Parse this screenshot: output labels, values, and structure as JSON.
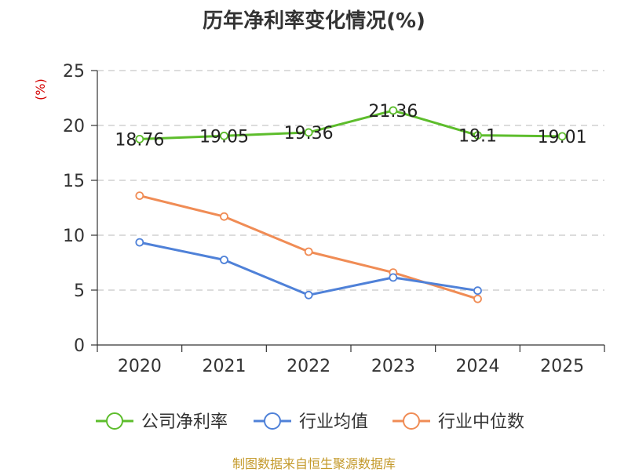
{
  "chart_data": {
    "type": "line",
    "title": "历年净利率变化情况(%)",
    "ylabel": "(%)",
    "xlabel": "",
    "categories": [
      "2020",
      "2021",
      "2022",
      "2023",
      "2024",
      "2025"
    ],
    "ylim": [
      0,
      25
    ],
    "yticks": [
      0,
      5,
      10,
      15,
      20,
      25
    ],
    "grid": true,
    "legend_position": "bottom",
    "series": [
      {
        "name": "公司净利率",
        "color": "#5dbd2c",
        "values": [
          18.76,
          19.05,
          19.36,
          21.36,
          19.1,
          19.01
        ],
        "labels": [
          "18.76",
          "19.05",
          "19.36",
          "21.36",
          "19.1",
          "19.01"
        ]
      },
      {
        "name": "行业均值",
        "color": "#4f81d8",
        "values": [
          9.35,
          7.75,
          4.55,
          6.15,
          4.95,
          null
        ]
      },
      {
        "name": "行业中位数",
        "color": "#f08c55",
        "values": [
          13.6,
          11.7,
          8.5,
          6.6,
          4.2,
          null
        ]
      }
    ],
    "source": "制图数据来自恒生聚源数据库"
  }
}
